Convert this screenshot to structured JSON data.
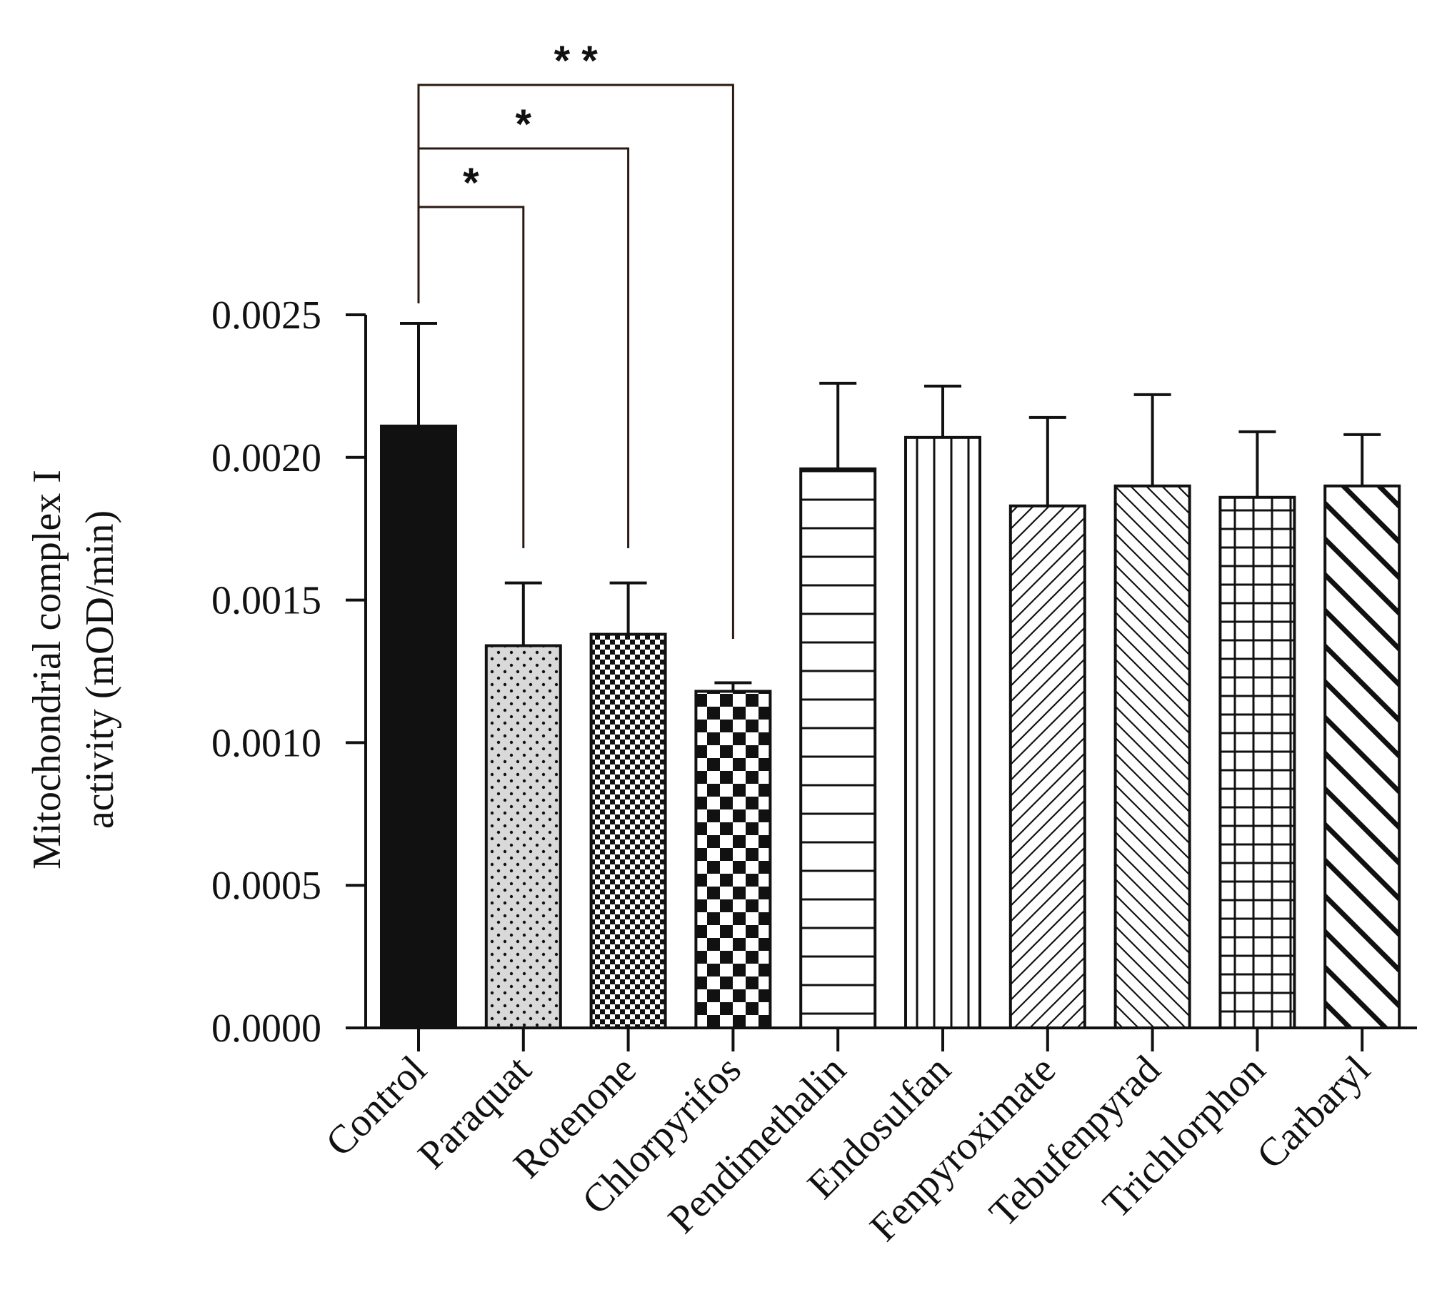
{
  "chart_data": {
    "type": "bar",
    "title": "",
    "xlabel": "",
    "ylabel_lines": [
      "Mitochondrial complex I",
      "activity (mOD/min)"
    ],
    "ylim": [
      0,
      0.0025
    ],
    "yticks": [
      0,
      0.0005,
      0.001,
      0.0015,
      0.002,
      0.0025
    ],
    "ytick_labels": [
      "0.0000",
      "0.0005",
      "0.0010",
      "0.0015",
      "0.0020",
      "0.0025"
    ],
    "categories": [
      "Control",
      "Paraquat",
      "Rotenone",
      "Chlorpyrifos",
      "Pendimethalin",
      "Endosulfan",
      "Fenpyroximate",
      "Tebufenpyrad",
      "Trichlorphon",
      "Carbaryl"
    ],
    "values": [
      0.00211,
      0.00134,
      0.00138,
      0.00118,
      0.00196,
      0.00207,
      0.00183,
      0.0019,
      0.00186,
      0.0019
    ],
    "errors": [
      0.00036,
      0.00022,
      0.00018,
      3e-05,
      0.0003,
      0.00018,
      0.00031,
      0.00032,
      0.00023,
      0.00018
    ],
    "patterns": [
      "solid",
      "dots",
      "fine-checker",
      "checker",
      "horizontal",
      "vertical",
      "diag-fine",
      "backdiag-fine",
      "grid",
      "diag-thick"
    ],
    "significance": [
      {
        "from": "Control",
        "to": "Paraquat",
        "label": "*"
      },
      {
        "from": "Control",
        "to": "Rotenone",
        "label": "*"
      },
      {
        "from": "Control",
        "to": "Chlorpyrifos",
        "label": "* *"
      }
    ],
    "colors": {
      "bar_edge": "#111111",
      "paraquat_fill": "#d9d9d9",
      "bracket": "#2a1a12",
      "axis": "#111111"
    }
  }
}
